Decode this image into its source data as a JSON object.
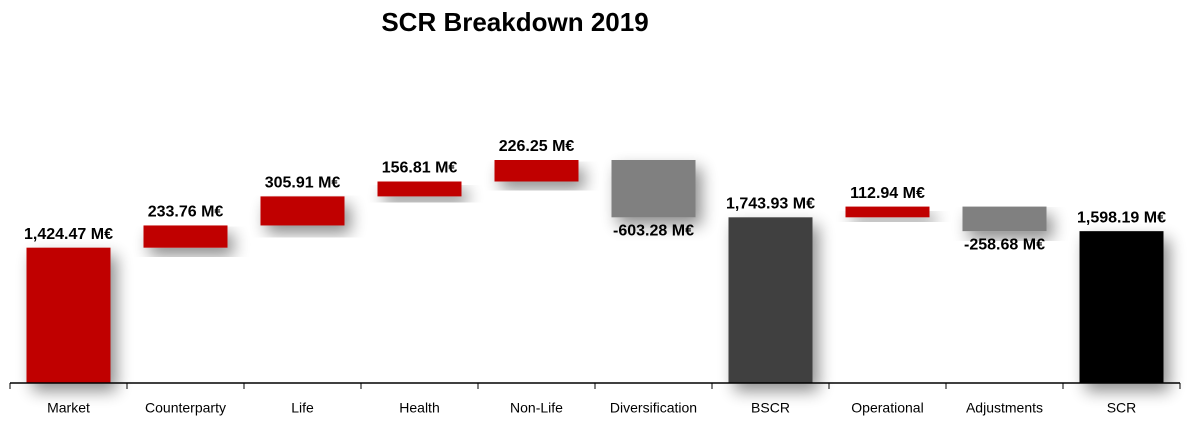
{
  "chart_data": {
    "type": "waterfall",
    "title": "SCR Breakdown 2019",
    "categories": [
      "Market",
      "Counterparty",
      "Life",
      "Health",
      "Non-Life",
      "Diversification",
      "BSCR",
      "Operational",
      "Adjustments",
      "SCR"
    ],
    "values": [
      1424.47,
      233.76,
      305.91,
      156.81,
      226.25,
      -603.28,
      1743.93,
      112.94,
      -258.68,
      1598.19
    ],
    "value_labels": [
      "1,424.47 M€",
      "233.76 M€",
      "305.91 M€",
      "156.81 M€",
      "226.25 M€",
      "-603.28 M€",
      "1,743.93 M€",
      "112.94 M€",
      "-258.68 M€",
      "1,598.19 M€"
    ],
    "colors": [
      "#c00000",
      "#c00000",
      "#c00000",
      "#c00000",
      "#c00000",
      "#808080",
      "#404040",
      "#c00000",
      "#808080",
      "#000000"
    ],
    "totals": [
      6,
      9
    ]
  }
}
